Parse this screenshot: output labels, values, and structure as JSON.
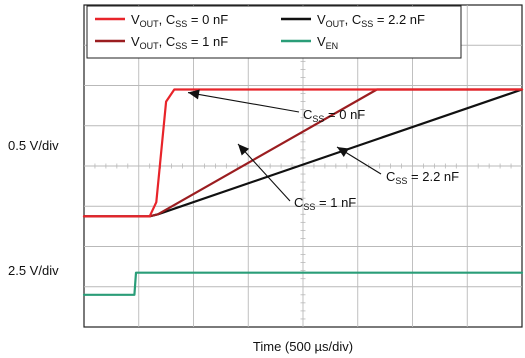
{
  "chart_data": {
    "type": "line",
    "title": "",
    "xlabel": "Time (500 µs/div)",
    "x_units": "div",
    "x_divisions": 8,
    "y_divisions": 8,
    "grid": true,
    "legend_position": "top-left",
    "channel_scales": [
      {
        "label": "0.5 V/div",
        "channel": "VOUT"
      },
      {
        "label": "2.5 V/div",
        "channel": "VEN"
      }
    ],
    "series": [
      {
        "name": "VOUT, CSS = 0 nF",
        "legend_main": "V",
        "legend_sub": "OUT",
        "legend_rest": ", C",
        "legend_sub2": "SS",
        "legend_tail": " = 0 nF",
        "color": "#e8242a",
        "y_units": "div",
        "x": [
          0,
          1.2,
          1.32,
          1.5,
          1.65,
          2.0,
          4.0,
          6.0,
          8.0
        ],
        "y": [
          2.75,
          2.75,
          3.1,
          5.6,
          5.9,
          5.9,
          5.9,
          5.9,
          5.9
        ]
      },
      {
        "name": "VOUT, CSS = 1 nF",
        "legend_main": "V",
        "legend_sub": "OUT",
        "legend_rest": ", C",
        "legend_sub2": "SS",
        "legend_tail": " = 1 nF",
        "color": "#9b1d20",
        "y_units": "div",
        "x": [
          0,
          1.2,
          1.35,
          5.35,
          8.0
        ],
        "y": [
          2.75,
          2.75,
          2.8,
          5.9,
          5.9
        ]
      },
      {
        "name": "VOUT, CSS = 2.2 nF",
        "legend_main": "V",
        "legend_sub": "OUT",
        "legend_rest": ", C",
        "legend_sub2": "SS",
        "legend_tail": " = 2.2 nF",
        "color": "#111111",
        "y_units": "div",
        "x": [
          0,
          1.2,
          1.35,
          8.0
        ],
        "y": [
          2.75,
          2.75,
          2.8,
          5.9
        ]
      },
      {
        "name": "VEN",
        "legend_main": "V",
        "legend_sub": "EN",
        "legend_rest": "",
        "legend_sub2": "",
        "legend_tail": "",
        "color": "#2a9d78",
        "y_units": "div",
        "x": [
          0,
          0.92,
          0.95,
          8.0
        ],
        "y": [
          0.8,
          0.8,
          1.35,
          1.35
        ]
      }
    ],
    "annotations": [
      {
        "main": "C",
        "sub": "SS",
        "tail": " = 0 nF",
        "pointer": "VOUT, CSS = 0 nF",
        "color": "#111111"
      },
      {
        "main": "C",
        "sub": "SS",
        "tail": " = 2.2 nF",
        "pointer": "VOUT, CSS = 2.2 nF",
        "color": "#111111"
      },
      {
        "main": "C",
        "sub": "SS",
        "tail": " = 1 nF",
        "pointer": "VOUT, CSS = 1 nF",
        "color": "#111111"
      }
    ]
  }
}
